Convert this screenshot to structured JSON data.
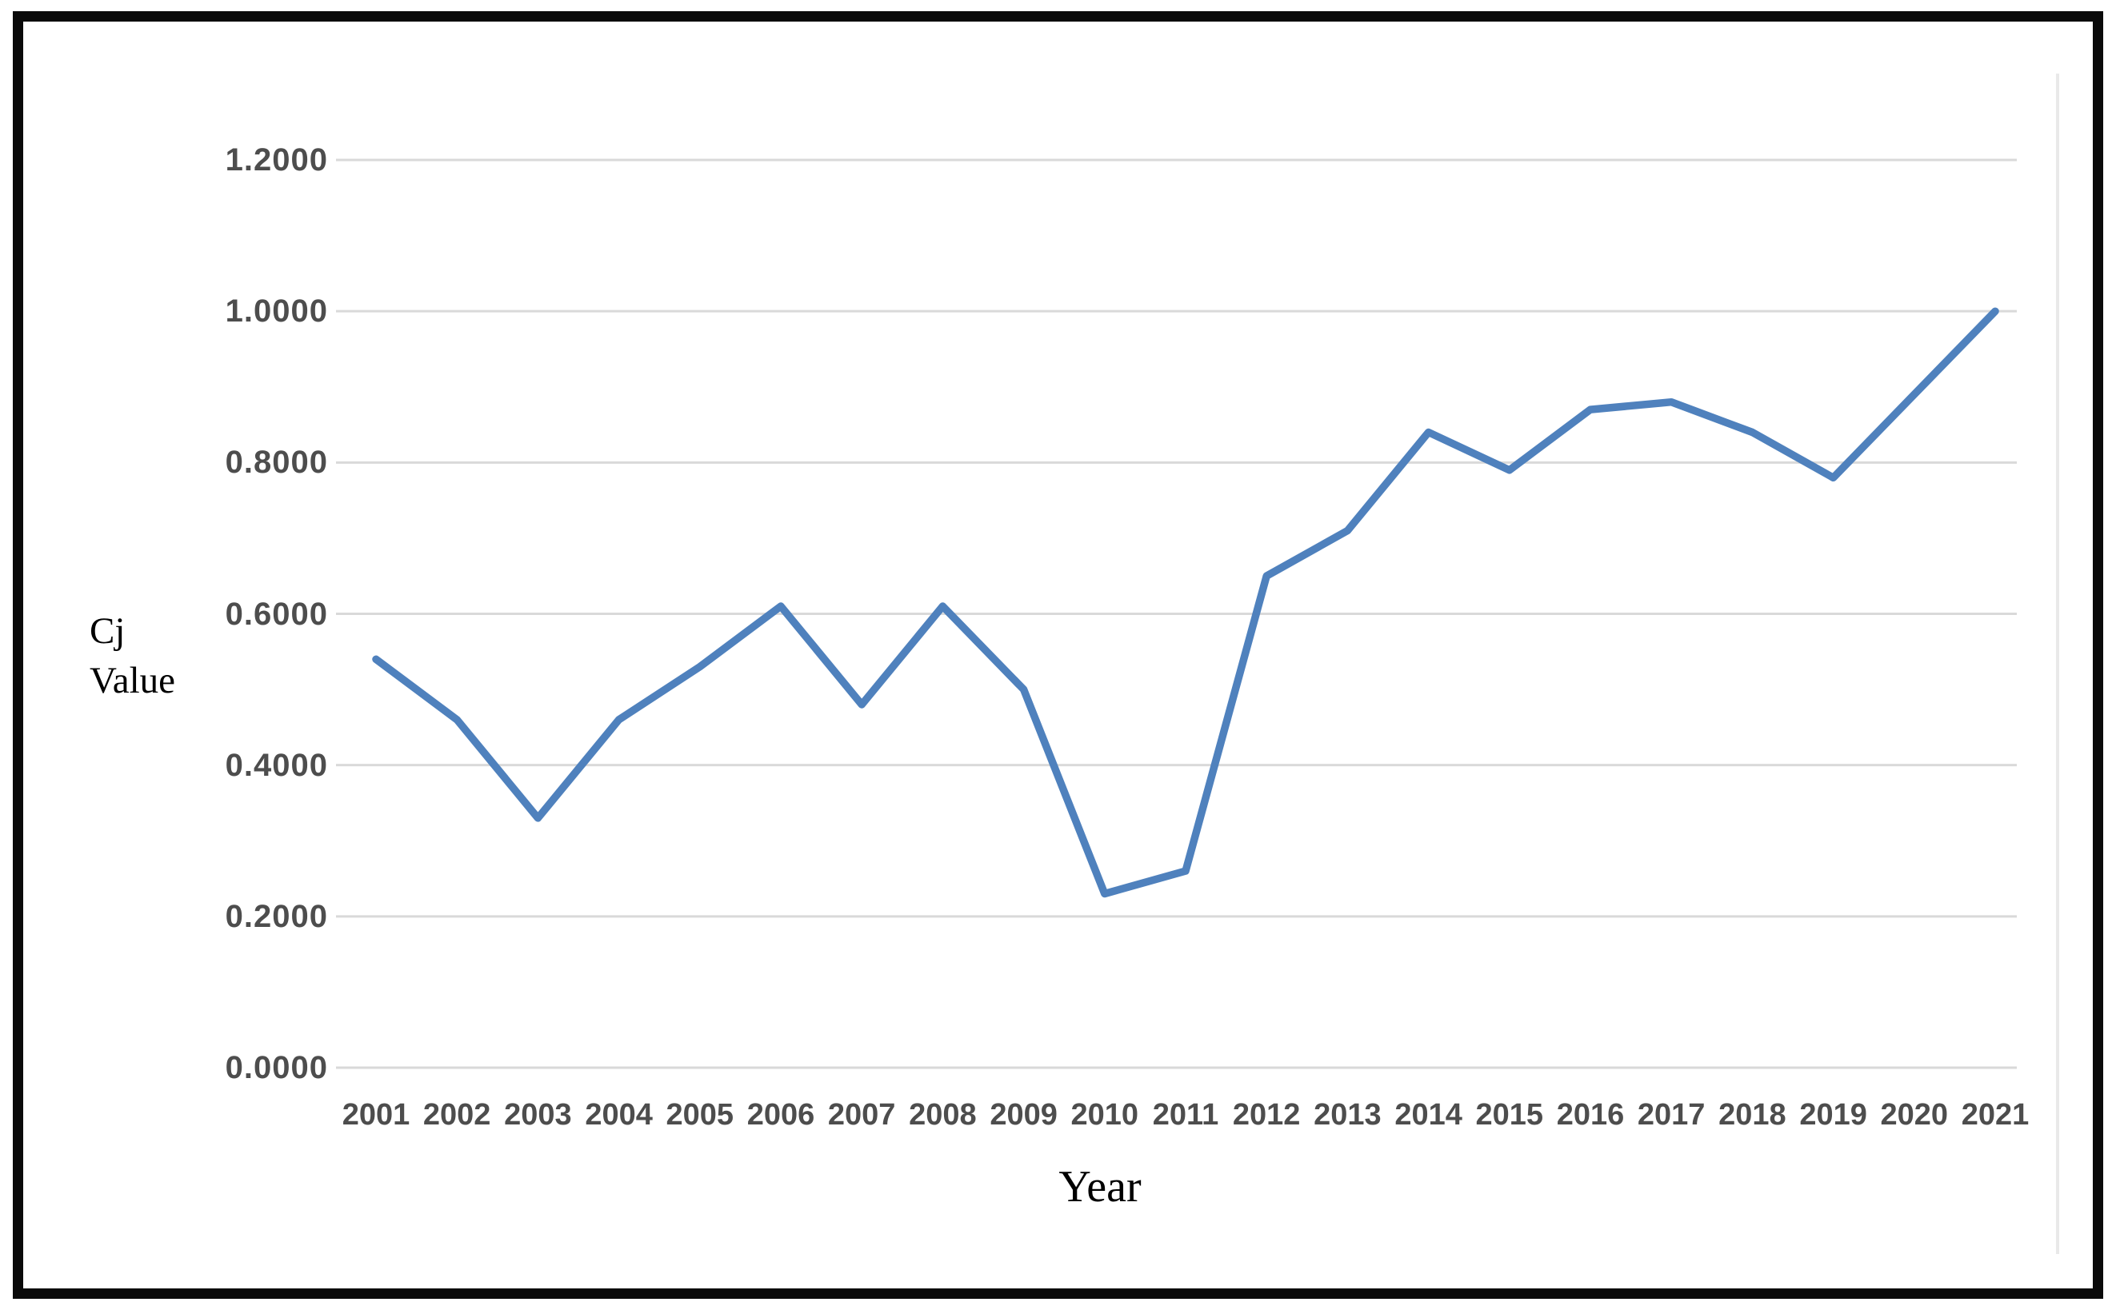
{
  "chart_data": {
    "type": "line",
    "title": "",
    "xlabel": "Year",
    "ylabel_lines": [
      "Cj",
      "Value"
    ],
    "categories": [
      "2001",
      "2002",
      "2003",
      "2004",
      "2005",
      "2006",
      "2007",
      "2008",
      "2009",
      "2010",
      "2011",
      "2012",
      "2013",
      "2014",
      "2015",
      "2016",
      "2017",
      "2018",
      "2019",
      "2020",
      "2021"
    ],
    "series": [
      {
        "name": "Cj Value",
        "values": [
          0.54,
          0.46,
          0.33,
          0.46,
          0.53,
          0.61,
          0.48,
          0.61,
          0.5,
          0.23,
          0.26,
          0.65,
          0.71,
          0.84,
          0.79,
          0.87,
          0.88,
          0.84,
          0.78,
          0.89,
          1.0
        ]
      }
    ],
    "y_ticks": [
      "0.0000",
      "0.2000",
      "0.4000",
      "0.6000",
      "0.8000",
      "1.0000",
      "1.2000"
    ],
    "ylim": [
      0.0,
      1.2
    ],
    "grid": true,
    "legend": "none",
    "line_color": "#4f81bd",
    "gridline_color": "#d9d9d9",
    "plot_right_border_color": "#e9e9e9",
    "tick_label_color": "#4d4d4d",
    "axis_title_color": "#000000"
  }
}
